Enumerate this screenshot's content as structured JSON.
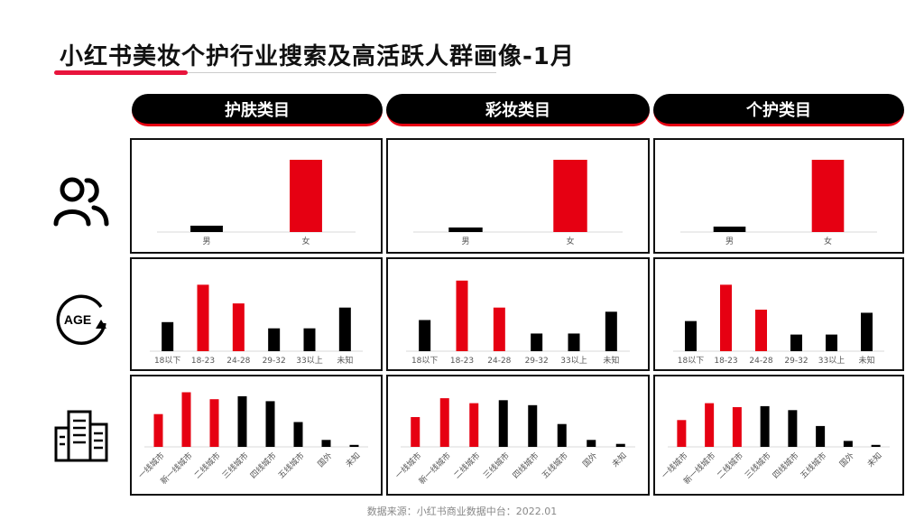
{
  "header": {
    "title": "小红书美妆个护行业搜索及高活跃人群画像-1月"
  },
  "tabs": [
    {
      "label": "护肤类目"
    },
    {
      "label": "彩妆类目"
    },
    {
      "label": "个护类目"
    }
  ],
  "row_icons": [
    {
      "icon": "people-icon"
    },
    {
      "icon": "age-icon",
      "label": "AGE"
    },
    {
      "icon": "buildings-icon"
    }
  ],
  "footer": {
    "source": "数据来源：小红书商业数据中台：2022.01"
  },
  "colors": {
    "accent": "#e60012",
    "dark": "#000000"
  },
  "chart_data": [
    {
      "type": "bar",
      "group": "护肤类目",
      "dimension": "gender",
      "categories": [
        "男",
        "女"
      ],
      "values": [
        7,
        80
      ],
      "highlight": [
        false,
        true
      ]
    },
    {
      "type": "bar",
      "group": "彩妆类目",
      "dimension": "gender",
      "categories": [
        "男",
        "女"
      ],
      "values": [
        5,
        80
      ],
      "highlight": [
        false,
        true
      ]
    },
    {
      "type": "bar",
      "group": "个护类目",
      "dimension": "gender",
      "categories": [
        "男",
        "女"
      ],
      "values": [
        6,
        80
      ],
      "highlight": [
        false,
        true
      ]
    },
    {
      "type": "bar",
      "group": "护肤类目",
      "dimension": "age",
      "categories": [
        "18以下",
        "18-23",
        "24-28",
        "29-32",
        "33以上",
        "未知"
      ],
      "values": [
        28,
        64,
        46,
        22,
        22,
        42
      ],
      "highlight": [
        false,
        true,
        true,
        false,
        false,
        false
      ]
    },
    {
      "type": "bar",
      "group": "彩妆类目",
      "dimension": "age",
      "categories": [
        "18以下",
        "18-23",
        "24-28",
        "29-32",
        "33以上",
        "未知"
      ],
      "values": [
        30,
        68,
        42,
        17,
        17,
        38
      ],
      "highlight": [
        false,
        true,
        true,
        false,
        false,
        false
      ]
    },
    {
      "type": "bar",
      "group": "个护类目",
      "dimension": "age",
      "categories": [
        "18以下",
        "18-23",
        "24-28",
        "29-32",
        "33以上",
        "未知"
      ],
      "values": [
        29,
        64,
        40,
        16,
        16,
        37
      ],
      "highlight": [
        false,
        true,
        true,
        false,
        false,
        false
      ]
    },
    {
      "type": "bar",
      "group": "护肤类目",
      "dimension": "city",
      "categories": [
        "一线城市",
        "新一线城市",
        "二线城市",
        "三线城市",
        "四线城市",
        "五线城市",
        "国外",
        "未知"
      ],
      "values": [
        33,
        55,
        48,
        51,
        46,
        25,
        7,
        2
      ],
      "highlight": [
        true,
        true,
        true,
        false,
        false,
        false,
        false,
        false
      ]
    },
    {
      "type": "bar",
      "group": "彩妆类目",
      "dimension": "city",
      "categories": [
        "一线城市",
        "新一线城市",
        "二线城市",
        "三线城市",
        "四线城市",
        "五线城市",
        "国外",
        "未知"
      ],
      "values": [
        30,
        49,
        44,
        47,
        42,
        23,
        7,
        3
      ],
      "highlight": [
        true,
        true,
        true,
        false,
        false,
        false,
        false,
        false
      ]
    },
    {
      "type": "bar",
      "group": "个护类目",
      "dimension": "city",
      "categories": [
        "一线城市",
        "新一线城市",
        "二线城市",
        "三线城市",
        "四线城市",
        "五线城市",
        "国外",
        "未知"
      ],
      "values": [
        27,
        44,
        40,
        41,
        37,
        21,
        6,
        2
      ],
      "highlight": [
        true,
        true,
        true,
        false,
        false,
        false,
        false,
        false
      ]
    }
  ]
}
